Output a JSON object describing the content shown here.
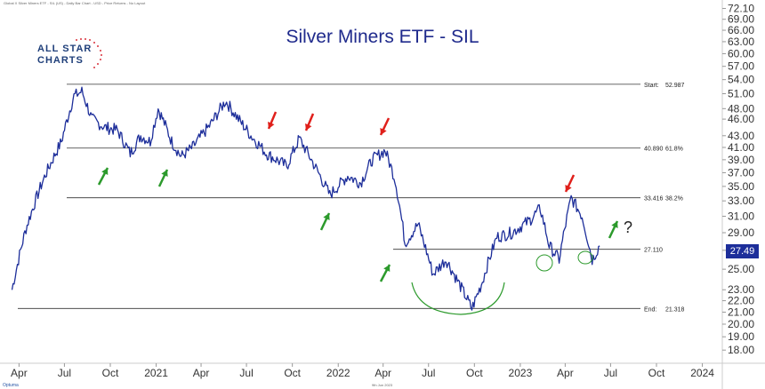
{
  "header": {
    "text": "Global X Silver Miners ETF - SIL (US) - Daily Bar Chart - USD - Price Returns - No Layout"
  },
  "logo": {
    "line1": "ALL STAR",
    "line2": "CHARTS"
  },
  "footer": {
    "brand": "Optuma",
    "date": "9th Jun 2023"
  },
  "chart_data": {
    "type": "line",
    "title": "Silver Miners ETF - SIL",
    "xlabel": "",
    "ylabel": "",
    "y_scale": "log",
    "ylim": [
      17.5,
      72.5
    ],
    "y_ticks": [
      "72.10",
      "69.00",
      "66.00",
      "63.00",
      "60.00",
      "57.00",
      "54.00",
      "51.00",
      "48.00",
      "46.00",
      "43.00",
      "41.00",
      "39.00",
      "37.00",
      "35.00",
      "33.00",
      "31.00",
      "29.00",
      "27.00",
      "25.00",
      "23.00",
      "22.00",
      "21.00",
      "20.00",
      "19.00",
      "18.00"
    ],
    "x_labels": [
      "Apr",
      "Jul",
      "Oct",
      "2021",
      "Apr",
      "Jul",
      "Oct",
      "2022",
      "Apr",
      "Jul",
      "Oct",
      "2023",
      "Apr",
      "Jul",
      "Oct",
      "2024"
    ],
    "x_label_dates": [
      "2020-04-01",
      "2020-07-01",
      "2020-10-01",
      "2021-01-01",
      "2021-04-01",
      "2021-07-01",
      "2021-10-01",
      "2022-01-01",
      "2022-04-01",
      "2022-07-01",
      "2022-10-01",
      "2023-01-01",
      "2023-04-01",
      "2023-07-01",
      "2023-10-01",
      "2024-01-01"
    ],
    "last_price": "27.49",
    "series": [
      {
        "dates": [
          "2020-03-18",
          "2020-04-15",
          "2020-05-20",
          "2020-06-25",
          "2020-07-20",
          "2020-08-05",
          "2020-08-25",
          "2020-09-20",
          "2020-10-15",
          "2020-11-10",
          "2020-12-01",
          "2020-12-20",
          "2021-01-05",
          "2021-02-01",
          "2021-02-20",
          "2021-03-15",
          "2021-04-20",
          "2021-05-20",
          "2021-06-15",
          "2021-07-10",
          "2021-08-10",
          "2021-08-20",
          "2021-09-20",
          "2021-10-15",
          "2021-11-15",
          "2021-12-15",
          "2022-01-20",
          "2022-02-15",
          "2022-03-10",
          "2022-04-05",
          "2022-04-25",
          "2022-05-15",
          "2022-06-10",
          "2022-07-10",
          "2022-08-05",
          "2022-09-01",
          "2022-09-26",
          "2022-10-15",
          "2022-11-15",
          "2022-12-15",
          "2023-01-20",
          "2023-02-10",
          "2023-02-28",
          "2023-03-20",
          "2023-04-13",
          "2023-05-05",
          "2023-05-25",
          "2023-06-09"
        ],
        "values": [
          23.0,
          29.5,
          36.0,
          42.0,
          50.5,
          51.5,
          46.0,
          44.5,
          44.0,
          40.0,
          43.0,
          42.0,
          48.0,
          42.0,
          39.5,
          41.0,
          45.0,
          49.5,
          46.0,
          43.0,
          40.0,
          39.5,
          38.0,
          42.5,
          38.0,
          33.8,
          36.5,
          35.5,
          39.0,
          40.5,
          36.0,
          27.8,
          30.0,
          24.5,
          26.0,
          23.5,
          21.3,
          23.5,
          28.5,
          29.0,
          30.5,
          32.0,
          27.5,
          26.0,
          33.4,
          31.0,
          26.0,
          27.49
        ]
      }
    ],
    "horizontal_levels": [
      {
        "value": 52.987,
        "left_label": "Start:",
        "right_label": "52.987"
      },
      {
        "value": 40.89,
        "left_label": "40.890",
        "right_label": "61.8%"
      },
      {
        "value": 33.416,
        "left_label": "33.416",
        "right_label": "38.2%"
      },
      {
        "value": 27.11,
        "left_label": "27.110",
        "right_label": ""
      },
      {
        "value": 21.318,
        "left_label": "End:",
        "right_label": "21.318"
      }
    ],
    "annotations": {
      "question_mark": "?",
      "red_arrows": 4,
      "green_arrows": 6,
      "circles": 2,
      "arc": 1
    },
    "colors": {
      "series": "#1d2e9a",
      "title": "#1f2a8c",
      "red_arrow": "#e0201b",
      "green_arrow": "#2c9a2c",
      "levels": "#333333",
      "logo_text": "#1f3f7a",
      "logo_stars": "#d8323c"
    }
  }
}
